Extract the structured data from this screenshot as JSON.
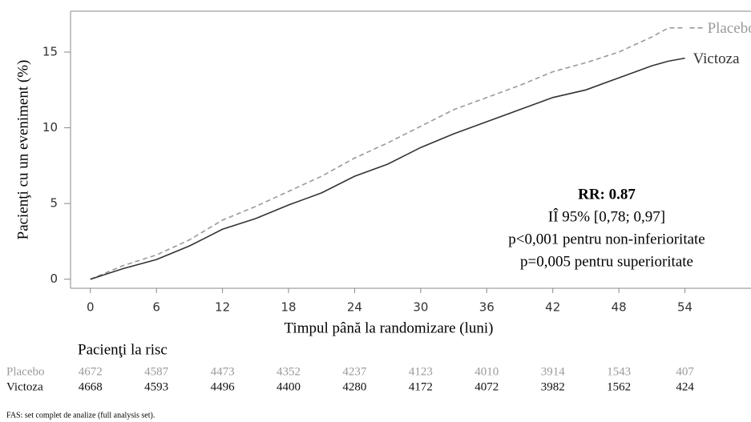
{
  "chart_data": {
    "type": "line",
    "x_label": "Timpul până la randomizare (luni)",
    "y_label": "Pacienţi cu un eveniment (%)",
    "x": [
      0,
      3,
      6,
      9,
      12,
      15,
      18,
      21,
      24,
      27,
      30,
      33,
      36,
      39,
      42,
      45,
      48,
      51,
      52.5,
      54
    ],
    "series": [
      {
        "name": "Placebo",
        "color": "#9a9a9a",
        "dashed": true,
        "values": [
          0,
          0.9,
          1.6,
          2.6,
          3.9,
          4.8,
          5.8,
          6.8,
          8.0,
          9.0,
          10.1,
          11.2,
          12.0,
          12.8,
          13.7,
          14.3,
          15.0,
          16.0,
          16.6,
          16.6
        ]
      },
      {
        "name": "Victoza",
        "color": "#333333",
        "dashed": false,
        "values": [
          0,
          0.7,
          1.3,
          2.2,
          3.3,
          4.0,
          4.9,
          5.7,
          6.8,
          7.6,
          8.7,
          9.6,
          10.4,
          11.2,
          12.0,
          12.5,
          13.3,
          14.1,
          14.4,
          14.6
        ]
      }
    ],
    "xlim": [
      -1.8,
      60
    ],
    "ylim": [
      -0.6,
      17.7
    ],
    "xticks": [
      0,
      6,
      12,
      18,
      24,
      30,
      36,
      42,
      48,
      54
    ],
    "yticks": [
      0,
      5,
      10,
      15
    ],
    "annotations": [
      "RR: 0.87",
      "IÎ 95% [0,78; 0,97]",
      "p<0,001 pentru non-inferioritate",
      "p=0,005 pentru superioritate"
    ]
  },
  "risk_table": {
    "title": "Pacienţi la risc",
    "rows": [
      {
        "name": "Placebo",
        "color": "#9a9a9a",
        "values": [
          4672,
          4587,
          4473,
          4352,
          4237,
          4123,
          4010,
          3914,
          1543,
          407
        ]
      },
      {
        "name": "Victoza",
        "color": "#111111",
        "values": [
          4668,
          4593,
          4496,
          4400,
          4280,
          4172,
          4072,
          3982,
          1562,
          424
        ]
      }
    ]
  },
  "footnote": "FAS: set complet de analize (full analysis set)."
}
